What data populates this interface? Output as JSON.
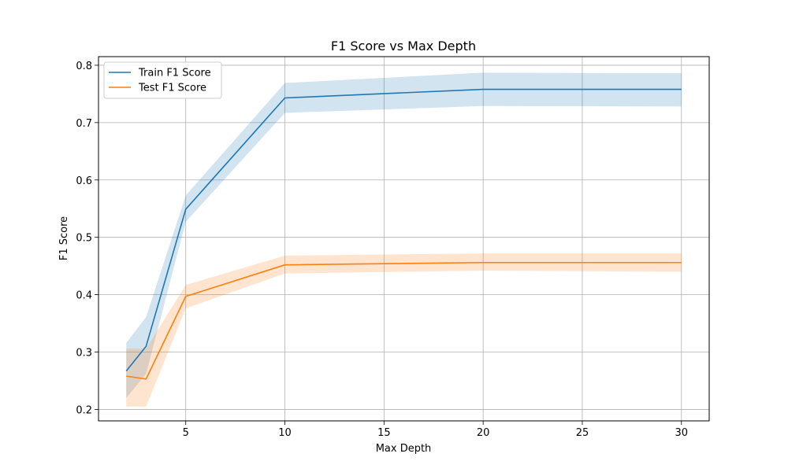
{
  "chart_data": {
    "type": "line",
    "title": "F1 Score vs Max Depth",
    "xlabel": "Max Depth",
    "ylabel": "F1 Score",
    "x": [
      2,
      3,
      5,
      10,
      20,
      30
    ],
    "xlim": [
      0.6,
      31.4
    ],
    "ylim": [
      0.18,
      0.815
    ],
    "xticks": [
      5,
      10,
      15,
      20,
      25,
      30
    ],
    "yticks": [
      0.2,
      0.3,
      0.4,
      0.5,
      0.6,
      0.7,
      0.8
    ],
    "ytick_labels": [
      "0.2",
      "0.3",
      "0.4",
      "0.5",
      "0.6",
      "0.7",
      "0.8"
    ],
    "grid": true,
    "legend_position": "top-left",
    "series": [
      {
        "name": "Train F1 Score",
        "color": "#1f77b4",
        "values": [
          0.267,
          0.31,
          0.549,
          0.743,
          0.758,
          0.758
        ],
        "lower": [
          0.22,
          0.262,
          0.527,
          0.717,
          0.729,
          0.728
        ],
        "upper": [
          0.316,
          0.361,
          0.573,
          0.769,
          0.787,
          0.786
        ]
      },
      {
        "name": "Test F1 Score",
        "color": "#ff7f0e",
        "values": [
          0.258,
          0.253,
          0.397,
          0.452,
          0.456,
          0.456
        ],
        "lower": [
          0.205,
          0.205,
          0.376,
          0.437,
          0.442,
          0.44
        ],
        "upper": [
          0.306,
          0.306,
          0.417,
          0.468,
          0.472,
          0.472
        ]
      }
    ]
  }
}
